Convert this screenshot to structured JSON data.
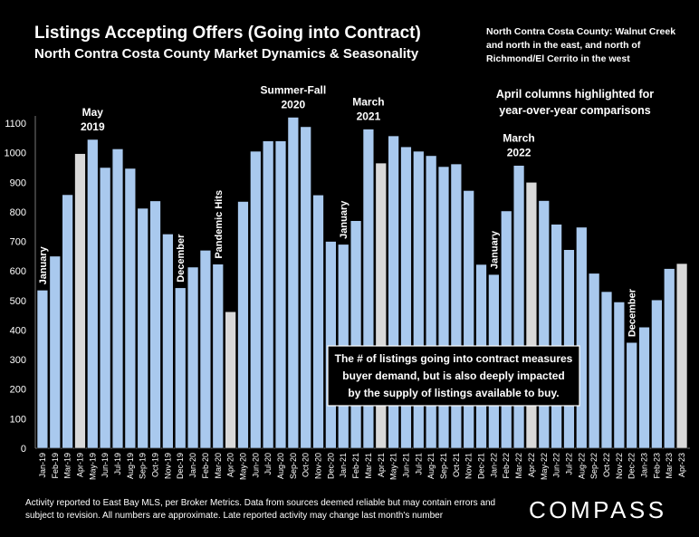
{
  "title": "Listings Accepting Offers (Going into Contract)",
  "subtitle": "North Contra Costa County Market Dynamics & Seasonality",
  "region_note": "North Contra Costa County: Walnut Creek and north in the east, and north of Richmond/El Cerrito in the west",
  "footer": "Activity reported to East Bay MLS, per Broker Metrics. Data from sources deemed reliable but may contain errors and subject to revision. All numbers are approximate. Late reported activity may change last month's number",
  "logo": "COMPASS",
  "colors": {
    "background": "#000000",
    "bar": "#A9C9EE",
    "highlight_bar": "#D9D9D9",
    "bar_stroke": "#000000"
  },
  "chart_data": {
    "type": "bar",
    "ylim": [
      0,
      1100
    ],
    "yticks": [
      0,
      100,
      200,
      300,
      400,
      500,
      600,
      700,
      800,
      900,
      1000,
      1100
    ],
    "gridlines": false,
    "highlight_categories": [
      "Apr-19",
      "Apr-20",
      "Apr-21",
      "Apr-22",
      "Apr-23"
    ],
    "categories": [
      "Jan-19",
      "Feb-19",
      "Mar-19",
      "Apr-19",
      "May-19",
      "Jun-19",
      "Jul-19",
      "Aug-19",
      "Sep-19",
      "Oct-19",
      "Nov-19",
      "Dec-19",
      "Jan-20",
      "Feb-20",
      "Mar-20",
      "Apr-20",
      "May-20",
      "Jun-20",
      "Jul-20",
      "Aug-20",
      "Sep-20",
      "Oct-20",
      "Nov-20",
      "Dec-20",
      "Jan-21",
      "Feb-21",
      "Mar-21",
      "Apr-21",
      "May-21",
      "Jun-21",
      "Jul-21",
      "Aug-21",
      "Sep-21",
      "Oct-21",
      "Nov-21",
      "Dec-21",
      "Jan-22",
      "Feb-22",
      "Mar-22",
      "Apr-22",
      "May-22",
      "Jun-22",
      "Jul-22",
      "Aug-22",
      "Sep-22",
      "Oct-22",
      "Nov-22",
      "Dec-22",
      "Jan-23",
      "Feb-23",
      "Mar-23",
      "Apr-23"
    ],
    "values": [
      535,
      650,
      858,
      997,
      1045,
      950,
      1013,
      947,
      812,
      837,
      725,
      543,
      613,
      670,
      623,
      462,
      835,
      1005,
      1040,
      1040,
      1120,
      1088,
      857,
      700,
      690,
      770,
      1080,
      965,
      1057,
      1020,
      1005,
      990,
      953,
      962,
      872,
      622,
      588,
      803,
      957,
      900,
      838,
      758,
      672,
      748,
      592,
      530,
      495,
      358,
      410,
      502,
      608,
      625
    ],
    "annotations": [
      {
        "text": "January",
        "at": "Jan-19",
        "orientation": "vertical"
      },
      {
        "text": "May 2019",
        "lines": [
          "May",
          "2019"
        ],
        "at": "May-19"
      },
      {
        "text": "December",
        "at": "Dec-19",
        "orientation": "vertical"
      },
      {
        "text": "Pandemic Hits",
        "at": "Mar-20",
        "orientation": "vertical"
      },
      {
        "text": "Summer-Fall 2020",
        "lines": [
          "Summer-Fall",
          "2020"
        ],
        "at": "Sep-20"
      },
      {
        "text": "January",
        "at": "Jan-21",
        "orientation": "vertical"
      },
      {
        "text": "March 2021",
        "lines": [
          "March",
          "2021"
        ],
        "at": "Mar-21"
      },
      {
        "text": "January",
        "at": "Jan-22",
        "orientation": "vertical"
      },
      {
        "text": "March 2022",
        "lines": [
          "March",
          "2022"
        ],
        "at": "Mar-22"
      },
      {
        "text": "December",
        "at": "Dec-22",
        "orientation": "vertical"
      }
    ],
    "callouts": [
      {
        "text": "April columns highlighted for year-over-year comparisons",
        "lines": [
          "April columns highlighted for",
          "year-over-year comparisons"
        ]
      },
      {
        "text": "The # of listings going into contract measures buyer demand, but is also deeply impacted by the supply of listings available to buy.",
        "lines": [
          "The # of listings going into contract measures",
          "buyer demand, but is also deeply impacted",
          "by the supply of listings available to buy."
        ],
        "boxed": true
      }
    ]
  }
}
